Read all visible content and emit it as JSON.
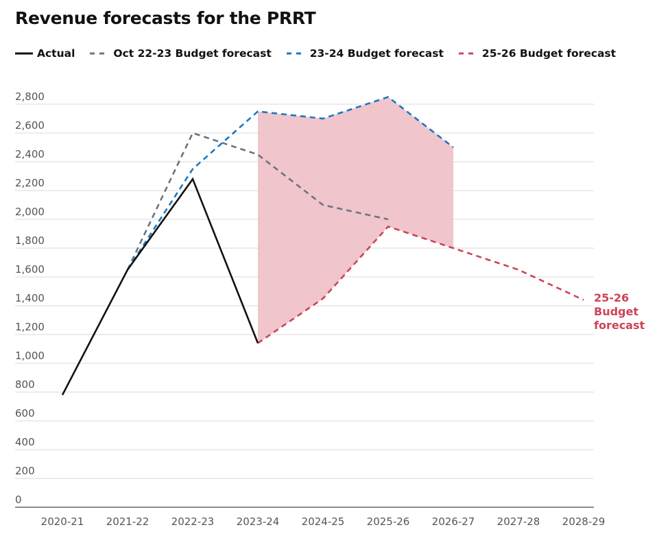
{
  "chart_data": {
    "type": "line",
    "title": "Revenue forecasts for the PRRT",
    "xlabel": "",
    "ylabel": "",
    "categories": [
      "2020-21",
      "2021-22",
      "2022-23",
      "2023-24",
      "2024-25",
      "2025-26",
      "2026-27",
      "2027-28",
      "2028-29"
    ],
    "yticks": [
      "0",
      "200",
      "400",
      "600",
      "800",
      "1,000",
      "1,200",
      "1,400",
      "1,600",
      "1,800",
      "2,000",
      "2,200",
      "2,400",
      "2,600",
      "2,800"
    ],
    "ylim": [
      0,
      2800
    ],
    "grid": true,
    "legend_position": "top-left",
    "series": [
      {
        "name": "Actual",
        "color": "#111111",
        "dashed": false,
        "values": [
          780,
          1650,
          2280,
          1140,
          null,
          null,
          null,
          null,
          null
        ]
      },
      {
        "name": "Oct 22-23 Budget forecast",
        "color": "#6b7480",
        "dashed": true,
        "values": [
          null,
          1650,
          2600,
          2450,
          2100,
          2000,
          null,
          null,
          null
        ]
      },
      {
        "name": "23-24 Budget forecast",
        "color": "#1878c0",
        "dashed": true,
        "values": [
          null,
          1650,
          2350,
          2750,
          2700,
          2850,
          2500,
          null,
          null
        ]
      },
      {
        "name": "25-26 Budget forecast",
        "color": "#cc4455",
        "dashed": true,
        "values": [
          null,
          null,
          null,
          1140,
          1450,
          1950,
          1800,
          1650,
          1440
        ]
      }
    ],
    "shaded_band": {
      "color": "#efc2c9",
      "upper_series": "23-24 Budget forecast",
      "lower_series": "25-26 Budget forecast",
      "from": "2023-24",
      "to": "2026-27"
    },
    "end_label": {
      "series": "25-26 Budget forecast",
      "lines": [
        "25-26",
        "Budget",
        "forecast"
      ]
    }
  }
}
